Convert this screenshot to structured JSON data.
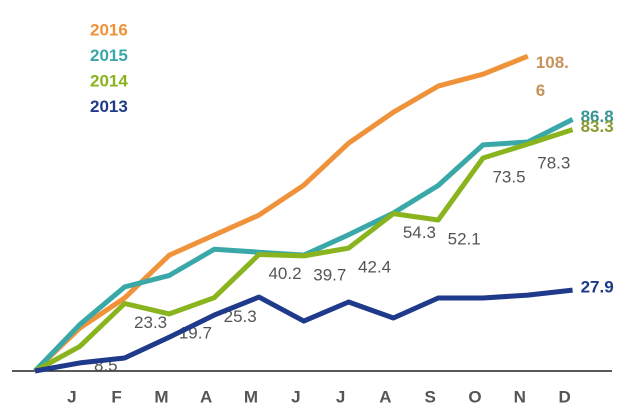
{
  "chart_data": {
    "type": "line",
    "categories": [
      null,
      "J",
      "F",
      "M",
      "A",
      "M",
      "J",
      "J",
      "A",
      "S",
      "O",
      "N",
      "D"
    ],
    "ylim": [
      0,
      128
    ],
    "legend": "top-left",
    "series": [
      {
        "name": "2016",
        "color": "#f0923a",
        "label_color": "#c8935a",
        "data_labels": "last",
        "values": [
          0,
          14.8,
          25.2,
          40,
          46.9,
          53.8,
          64.1,
          78.6,
          89.3,
          98.3,
          102.4,
          108.6,
          null
        ]
      },
      {
        "name": "2015",
        "color": "#3aa8a8",
        "label_color": "#3a9494",
        "data_labels": "last",
        "values": [
          0,
          16,
          29,
          33,
          42,
          41,
          40,
          47,
          54.5,
          64,
          78,
          79,
          86.8
        ]
      },
      {
        "name": "2014",
        "color": "#8ab41e",
        "label_color": "#8a9a30",
        "data_labels": "all",
        "values": [
          0,
          8.5,
          23.3,
          19.7,
          25.3,
          40.2,
          39.7,
          42.4,
          54.3,
          52.1,
          73.5,
          78.3,
          83.3
        ]
      },
      {
        "name": "2013",
        "color": "#1f3a8a",
        "label_color": "#1f3a8a",
        "data_labels": "last",
        "values": [
          0,
          2.8,
          4.5,
          11.7,
          19.3,
          25.5,
          17.2,
          23.8,
          18.3,
          25.2,
          25.2,
          26.2,
          27.9
        ]
      }
    ]
  }
}
